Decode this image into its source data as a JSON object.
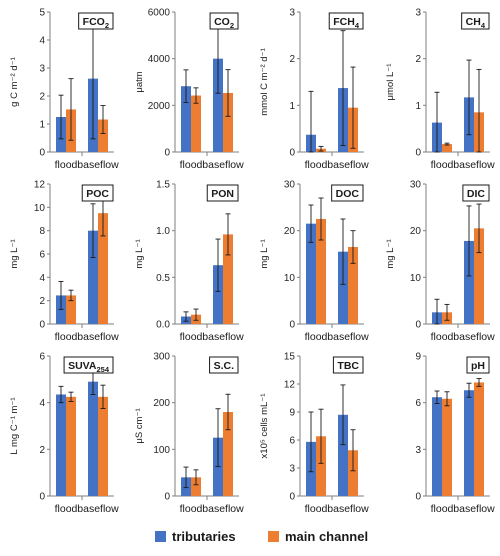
{
  "colors": {
    "tributaries": "#4472C4",
    "main_channel": "#ED7D31",
    "error": "#1a1a1a",
    "axis": "#7f7f7f"
  },
  "legend": {
    "placement": "bottom",
    "items": [
      {
        "label": "tributaries",
        "color": "#4472C4"
      },
      {
        "label": "main channel",
        "color": "#ED7D31"
      }
    ]
  },
  "chart_data": [
    {
      "type": "bar",
      "categories": [
        "flood",
        "baseflow"
      ],
      "title": "FCO",
      "title_sub": "2",
      "ylabel": "g C m⁻² d⁻¹",
      "ylim": [
        0,
        5
      ],
      "yticks": [
        0,
        1,
        2,
        3,
        4,
        5
      ],
      "series": [
        {
          "name": "tributaries",
          "values": [
            1.25,
            2.62
          ],
          "errors": [
            0.78,
            2.15
          ]
        },
        {
          "name": "main channel",
          "values": [
            1.52,
            1.16
          ],
          "errors": [
            1.1,
            0.5
          ]
        }
      ]
    },
    {
      "type": "bar",
      "categories": [
        "flood",
        "baseflow"
      ],
      "title": "CO",
      "title_sub": "2",
      "ylabel": "μatm",
      "ylim": [
        0,
        6000
      ],
      "yticks": [
        0,
        2000,
        4000,
        6000
      ],
      "series": [
        {
          "name": "tributaries",
          "values": [
            2820,
            4000
          ],
          "errors": [
            700,
            1480
          ]
        },
        {
          "name": "main channel",
          "values": [
            2420,
            2530
          ],
          "errors": [
            330,
            1000
          ]
        }
      ]
    },
    {
      "type": "bar",
      "categories": [
        "flood",
        "baseflow"
      ],
      "title": "FCH",
      "title_sub": "4",
      "ylabel": "mmol C m⁻² d⁻¹",
      "ylim": [
        0,
        3
      ],
      "yticks": [
        0,
        1,
        2,
        3
      ],
      "series": [
        {
          "name": "tributaries",
          "values": [
            0.37,
            1.37
          ],
          "errors": [
            0.93,
            1.23
          ]
        },
        {
          "name": "main channel",
          "values": [
            0.07,
            0.95
          ],
          "errors": [
            0.05,
            0.87
          ]
        }
      ]
    },
    {
      "type": "bar",
      "categories": [
        "flood",
        "baseflow"
      ],
      "title": "CH",
      "title_sub": "4",
      "ylabel": "μmol L⁻¹",
      "ylim": [
        0,
        3
      ],
      "yticks": [
        0,
        1,
        2,
        3
      ],
      "series": [
        {
          "name": "tributaries",
          "values": [
            0.63,
            1.17
          ],
          "errors": [
            0.65,
            0.8
          ]
        },
        {
          "name": "main channel",
          "values": [
            0.17,
            0.85
          ],
          "errors": [
            0.02,
            0.92
          ]
        }
      ]
    },
    {
      "type": "bar",
      "categories": [
        "flood",
        "baseflow"
      ],
      "title": "POC",
      "title_sub": "",
      "ylabel": "mg L⁻¹",
      "ylim": [
        0,
        12
      ],
      "yticks": [
        0,
        2,
        4,
        6,
        8,
        10,
        12
      ],
      "series": [
        {
          "name": "tributaries",
          "values": [
            2.45,
            8.0
          ],
          "errors": [
            1.2,
            2.3
          ]
        },
        {
          "name": "main channel",
          "values": [
            2.45,
            9.5
          ],
          "errors": [
            0.45,
            1.95
          ]
        }
      ]
    },
    {
      "type": "bar",
      "categories": [
        "flood",
        "baseflow"
      ],
      "title": "PON",
      "title_sub": "",
      "ylabel": "mg L⁻¹",
      "ylim": [
        0,
        1.5
      ],
      "yticks": [
        0,
        0.5,
        1.0,
        1.5
      ],
      "series": [
        {
          "name": "tributaries",
          "values": [
            0.08,
            0.63
          ],
          "errors": [
            0.05,
            0.28
          ]
        },
        {
          "name": "main channel",
          "values": [
            0.1,
            0.96
          ],
          "errors": [
            0.06,
            0.22
          ]
        }
      ]
    },
    {
      "type": "bar",
      "categories": [
        "flood",
        "baseflow"
      ],
      "title": "DOC",
      "title_sub": "",
      "ylabel": "mg L⁻¹",
      "ylim": [
        0,
        30
      ],
      "yticks": [
        0,
        10,
        20,
        30
      ],
      "series": [
        {
          "name": "tributaries",
          "values": [
            21.5,
            15.5
          ],
          "errors": [
            4.0,
            7.0
          ]
        },
        {
          "name": "main channel",
          "values": [
            22.5,
            16.5
          ],
          "errors": [
            4.5,
            3.5
          ]
        }
      ]
    },
    {
      "type": "bar",
      "categories": [
        "flood",
        "baseflow"
      ],
      "title": "DIC",
      "title_sub": "",
      "ylabel": "mg L⁻¹",
      "ylim": [
        0,
        30
      ],
      "yticks": [
        0,
        10,
        20,
        30
      ],
      "series": [
        {
          "name": "tributaries",
          "values": [
            2.5,
            17.8
          ],
          "errors": [
            2.8,
            7.5
          ]
        },
        {
          "name": "main channel",
          "values": [
            2.5,
            20.5
          ],
          "errors": [
            1.7,
            5.2
          ]
        }
      ]
    },
    {
      "type": "bar",
      "categories": [
        "flood",
        "baseflow"
      ],
      "title": "SUVA",
      "title_sub": "254",
      "ylabel": "L mg C⁻¹ m⁻¹",
      "ylim": [
        0,
        6
      ],
      "yticks": [
        0,
        2,
        4,
        6
      ],
      "series": [
        {
          "name": "tributaries",
          "values": [
            4.35,
            4.9
          ],
          "errors": [
            0.35,
            0.55
          ]
        },
        {
          "name": "main channel",
          "values": [
            4.25,
            4.25
          ],
          "errors": [
            0.2,
            0.5
          ]
        }
      ]
    },
    {
      "type": "bar",
      "categories": [
        "flood",
        "baseflow"
      ],
      "title": "S.C.",
      "title_sub": "",
      "ylabel": "μS cm⁻¹",
      "ylim": [
        0,
        300
      ],
      "yticks": [
        0,
        100,
        200,
        300
      ],
      "series": [
        {
          "name": "tributaries",
          "values": [
            40,
            125
          ],
          "errors": [
            22,
            62
          ]
        },
        {
          "name": "main channel",
          "values": [
            40,
            180
          ],
          "errors": [
            16,
            38
          ]
        }
      ]
    },
    {
      "type": "bar",
      "categories": [
        "flood",
        "baseflow"
      ],
      "title": "TBC",
      "title_sub": "",
      "ylabel": "x10⁵ cells mL⁻¹",
      "ylim": [
        0,
        15
      ],
      "yticks": [
        0,
        3,
        6,
        9,
        12,
        15
      ],
      "series": [
        {
          "name": "tributaries",
          "values": [
            5.8,
            8.7
          ],
          "errors": [
            3.2,
            3.2
          ]
        },
        {
          "name": "main channel",
          "values": [
            6.4,
            4.9
          ],
          "errors": [
            2.9,
            2.2
          ]
        }
      ]
    },
    {
      "type": "bar",
      "categories": [
        "flood",
        "baseflow"
      ],
      "title": "pH",
      "title_sub": "",
      "ylabel": "",
      "ylim": [
        0,
        9
      ],
      "yticks": [
        0,
        3,
        6,
        9
      ],
      "series": [
        {
          "name": "tributaries",
          "values": [
            6.35,
            6.8
          ],
          "errors": [
            0.4,
            0.45
          ]
        },
        {
          "name": "main channel",
          "values": [
            6.25,
            7.3
          ],
          "errors": [
            0.45,
            0.25
          ]
        }
      ]
    }
  ]
}
